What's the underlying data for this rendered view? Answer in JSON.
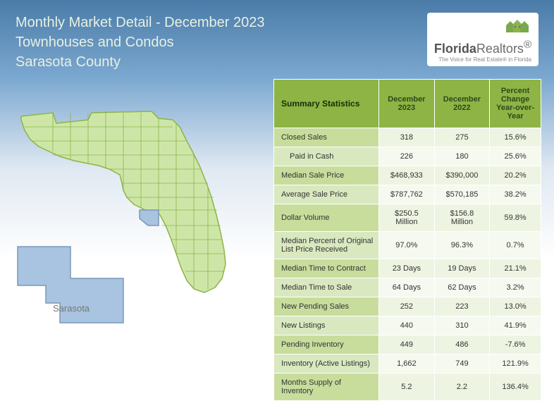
{
  "header": {
    "line1": "Monthly Market Detail - December 2023",
    "line2": "Townhouses and Condos",
    "line3": "Sarasota County"
  },
  "logo": {
    "brand_strong": "Florida",
    "brand_rest": "Realtors",
    "tagline": "The Voice for Real Estate® in Florida",
    "icon_color": "#7aa84c"
  },
  "map": {
    "county_label": "Sarasota",
    "florida_fill": "#cde6a8",
    "florida_stroke": "#8db445",
    "highlight_fill": "#a8c4e0",
    "highlight_stroke": "#7a98b8",
    "county_fill": "#a8c4e0",
    "county_stroke": "#7a98b8"
  },
  "table": {
    "header_bg": "#8db445",
    "row_label_bg_odd": "#c8dd9c",
    "row_label_bg_even": "#d9e8bf",
    "cell_bg_odd": "#eef4e2",
    "cell_bg_even": "#f6f9ef",
    "columns": [
      "Summary Statistics",
      "December 2023",
      "December 2022",
      "Percent Change\nYear-over-Year"
    ],
    "rows": [
      {
        "label": "Closed Sales",
        "c1": "318",
        "c2": "275",
        "c3": "15.6%",
        "indent": false
      },
      {
        "label": "Paid in Cash",
        "c1": "226",
        "c2": "180",
        "c3": "25.6%",
        "indent": true
      },
      {
        "label": "Median Sale Price",
        "c1": "$468,933",
        "c2": "$390,000",
        "c3": "20.2%",
        "indent": false
      },
      {
        "label": "Average Sale Price",
        "c1": "$787,762",
        "c2": "$570,185",
        "c3": "38.2%",
        "indent": false
      },
      {
        "label": "Dollar Volume",
        "c1": "$250.5 Million",
        "c2": "$156.8 Million",
        "c3": "59.8%",
        "indent": false
      },
      {
        "label": "Median Percent of Original List Price Received",
        "c1": "97.0%",
        "c2": "96.3%",
        "c3": "0.7%",
        "indent": false
      },
      {
        "label": "Median Time to Contract",
        "c1": "23 Days",
        "c2": "19 Days",
        "c3": "21.1%",
        "indent": false
      },
      {
        "label": "Median Time to Sale",
        "c1": "64 Days",
        "c2": "62 Days",
        "c3": "3.2%",
        "indent": false
      },
      {
        "label": "New Pending Sales",
        "c1": "252",
        "c2": "223",
        "c3": "13.0%",
        "indent": false
      },
      {
        "label": "New Listings",
        "c1": "440",
        "c2": "310",
        "c3": "41.9%",
        "indent": false
      },
      {
        "label": "Pending Inventory",
        "c1": "449",
        "c2": "486",
        "c3": "-7.6%",
        "indent": false
      },
      {
        "label": "Inventory (Active Listings)",
        "c1": "1,662",
        "c2": "749",
        "c3": "121.9%",
        "indent": false
      },
      {
        "label": "Months Supply of Inventory",
        "c1": "5.2",
        "c2": "2.2",
        "c3": "136.4%",
        "indent": false
      }
    ]
  }
}
